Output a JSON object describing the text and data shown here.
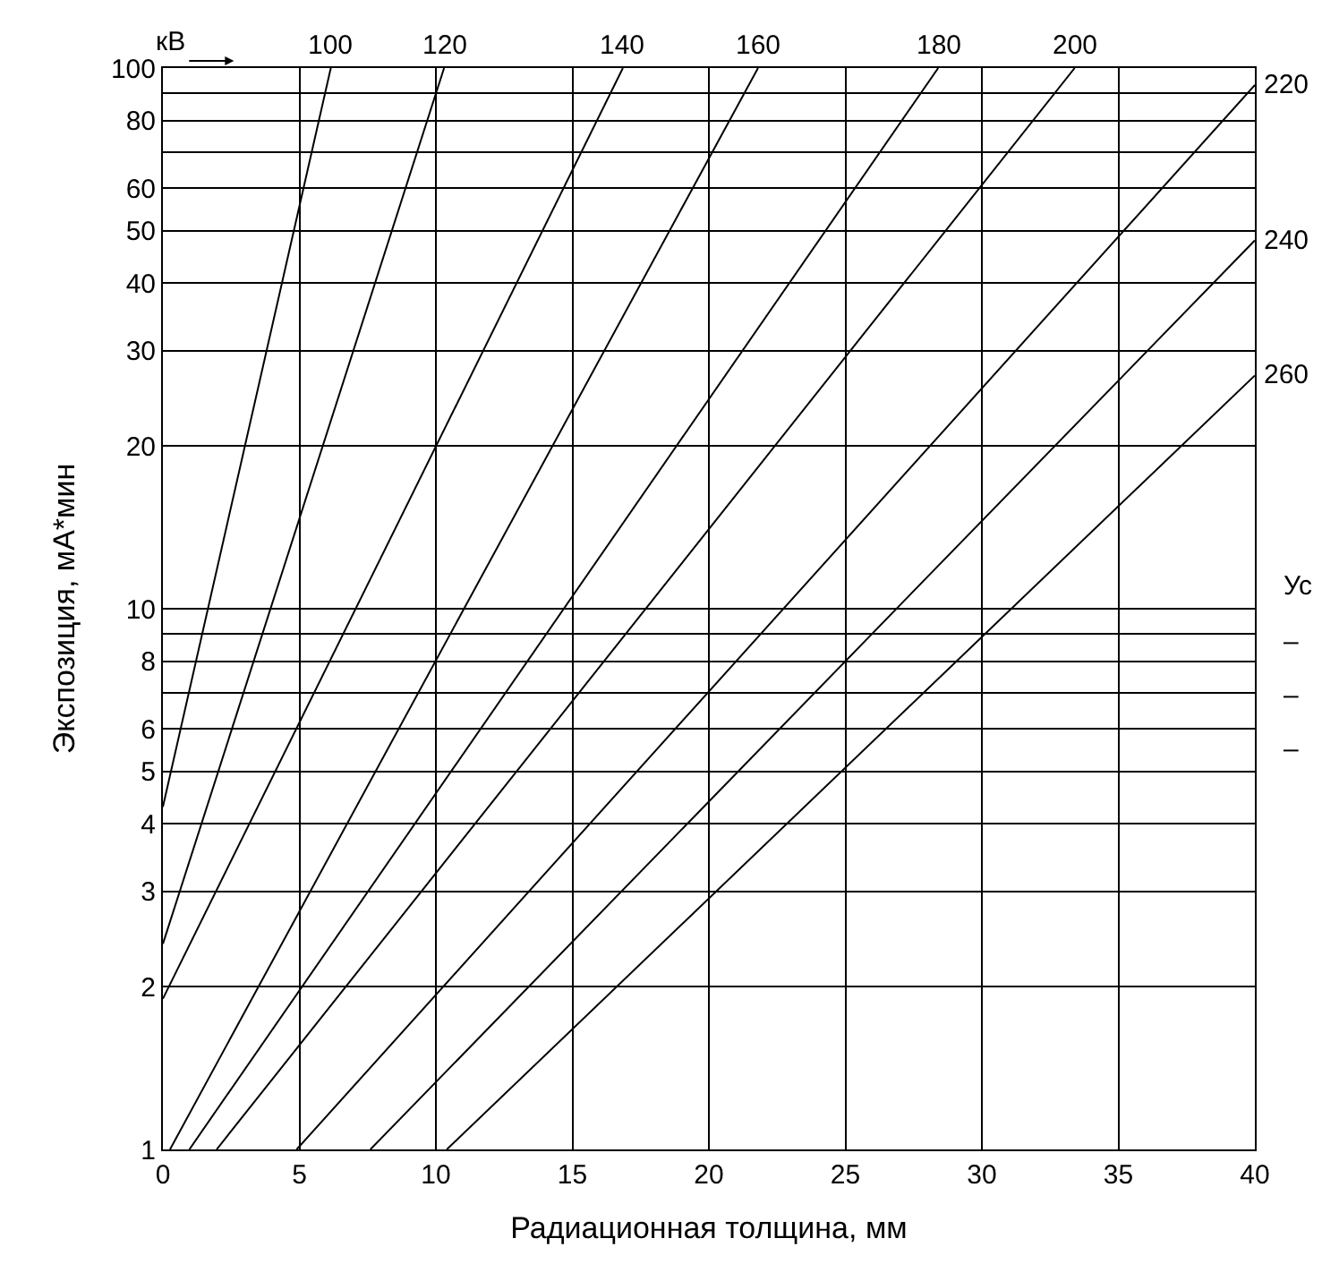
{
  "chart_data": {
    "type": "line",
    "xlabel": "Радиационная толщина, мм",
    "ylabel": "Экспозиция, мА*мин",
    "xlim": [
      0,
      40
    ],
    "xticks": [
      0,
      5,
      10,
      15,
      20,
      25,
      30,
      35,
      40
    ],
    "ylim": [
      1,
      100
    ],
    "yticks": [
      1,
      2,
      3,
      4,
      5,
      6,
      {
        "value": 7,
        "label": null
      },
      8,
      {
        "value": 9,
        "label": null
      },
      10,
      20,
      30,
      40,
      50,
      60,
      {
        "value": 70,
        "label": null
      },
      80,
      {
        "value": 90,
        "label": null
      },
      100
    ],
    "log": "y",
    "grid": true,
    "legend": false,
    "line_style": "solid",
    "marker": "none",
    "series": [
      {
        "name": "100",
        "color": "#000000",
        "x": [
          0,
          6.15
        ],
        "values": [
          4.3,
          100
        ]
      },
      {
        "name": "120",
        "color": "#000000",
        "x": [
          0,
          10.3
        ],
        "values": [
          2.4,
          100
        ]
      },
      {
        "name": "140",
        "color": "#000000",
        "x": [
          0,
          16.85
        ],
        "values": [
          1.9,
          100
        ]
      },
      {
        "name": "160",
        "color": "#000000",
        "x": [
          0.26,
          21.8
        ],
        "values": [
          1,
          100
        ]
      },
      {
        "name": "180",
        "color": "#000000",
        "x": [
          0.97,
          28.4
        ],
        "values": [
          1,
          100
        ]
      },
      {
        "name": "200",
        "color": "#000000",
        "x": [
          1.97,
          33.4
        ],
        "values": [
          1,
          100
        ]
      },
      {
        "name": "220",
        "color": "#000000",
        "x": [
          4.9,
          40
        ],
        "values": [
          1,
          93
        ]
      },
      {
        "name": "240",
        "color": "#000000",
        "x": [
          7.6,
          40
        ],
        "values": [
          1,
          48
        ]
      },
      {
        "name": "260",
        "color": "#000000",
        "x": [
          10.4,
          40
        ],
        "values": [
          1,
          27
        ]
      }
    ],
    "annotations": [
      "кВ",
      "Ус",
      "–",
      "–",
      "–"
    ]
  }
}
